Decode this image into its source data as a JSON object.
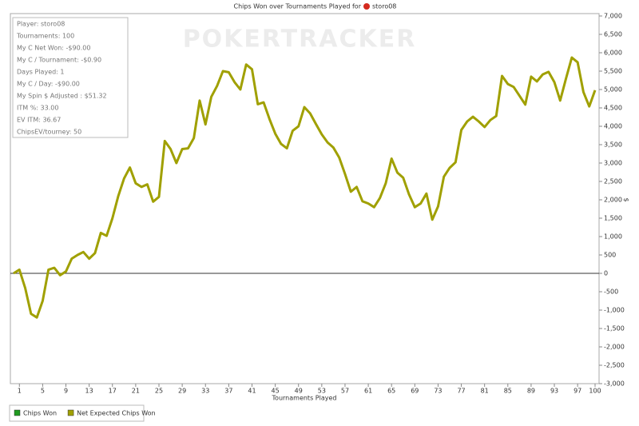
{
  "chart_data": {
    "type": "line",
    "title": "Chips Won over Tournaments Played for",
    "player": "storo08",
    "watermark": "POKERTRACKER",
    "x_label": "Tournaments Played",
    "y_label": "$",
    "info_box": {
      "lines": [
        "Player: storo08",
        "Tournaments: 100",
        "My C Net Won: -$90.00",
        "My C / Tournament: -$0.90",
        "Days Played: 1",
        "My C / Day: -$90.00",
        "My Spin $ Adjusted : $51.32",
        "ITM %: 33.00",
        "EV ITM: 36.67",
        "ChipsEV/tourney: 50"
      ]
    },
    "x": [
      0,
      1,
      2,
      3,
      4,
      5,
      6,
      7,
      8,
      9,
      10,
      11,
      12,
      13,
      14,
      15,
      16,
      17,
      18,
      19,
      20,
      21,
      22,
      23,
      24,
      25,
      26,
      27,
      28,
      29,
      30,
      31,
      32,
      33,
      34,
      35,
      36,
      37,
      38,
      39,
      40,
      41,
      42,
      43,
      44,
      45,
      46,
      47,
      48,
      49,
      50,
      51,
      52,
      53,
      54,
      55,
      56,
      57,
      58,
      59,
      60,
      61,
      62,
      63,
      64,
      65,
      66,
      67,
      68,
      69,
      70,
      71,
      72,
      73,
      74,
      75,
      76,
      77,
      78,
      79,
      80,
      81,
      82,
      83,
      84,
      85,
      86,
      87,
      88,
      89,
      90,
      91,
      92,
      93,
      94,
      95,
      96,
      97,
      98,
      99,
      100
    ],
    "legend": [
      {
        "name": "Chips Won",
        "color": "#1f9a1f"
      }
    ],
    "series": [
      {
        "name": "Net Expected Chips Won",
        "color": "#a0a000",
        "values": [
          0,
          100,
          -400,
          -1100,
          -1200,
          -750,
          100,
          150,
          -50,
          50,
          400,
          500,
          580,
          400,
          550,
          1100,
          1020,
          1500,
          2100,
          2580,
          2880,
          2450,
          2350,
          2420,
          1950,
          2080,
          3600,
          3380,
          3000,
          3380,
          3400,
          3680,
          4700,
          4050,
          4800,
          5100,
          5500,
          5470,
          5200,
          5000,
          5680,
          5550,
          4600,
          4650,
          4200,
          3800,
          3520,
          3400,
          3880,
          4000,
          4520,
          4350,
          4060,
          3780,
          3560,
          3420,
          3150,
          2700,
          2220,
          2350,
          1960,
          1900,
          1800,
          2050,
          2450,
          3120,
          2740,
          2600,
          2150,
          1800,
          1900,
          2170,
          1460,
          1820,
          2630,
          2870,
          3020,
          3900,
          4130,
          4260,
          4130,
          3980,
          4170,
          4280,
          5370,
          5150,
          5070,
          4830,
          4590,
          5350,
          5220,
          5410,
          5480,
          5200,
          4700,
          5300,
          5870,
          5740,
          4930,
          4540,
          4980
        ]
      }
    ],
    "xlim": [
      0,
      100
    ],
    "xticks": [
      1,
      5,
      9,
      13,
      17,
      21,
      25,
      29,
      33,
      37,
      41,
      45,
      49,
      53,
      57,
      61,
      65,
      69,
      73,
      77,
      81,
      85,
      89,
      93,
      97,
      100
    ],
    "ylim": [
      -3000,
      7000
    ],
    "yticks": [
      {
        "value": -3000,
        "label": "-3,000"
      },
      {
        "value": -2500,
        "label": "-2,500"
      },
      {
        "value": -2000,
        "label": "-2,000"
      },
      {
        "value": -1500,
        "label": "-1,500"
      },
      {
        "value": -1000,
        "label": "-1,000"
      },
      -500,
      0,
      500,
      {
        "value": 1000,
        "label": "1,000"
      },
      {
        "value": 1500,
        "label": "1,500"
      },
      {
        "value": 2000,
        "label": "2,000"
      },
      {
        "value": 2500,
        "label": "2,500"
      },
      {
        "value": 3000,
        "label": "3,000"
      },
      {
        "value": 3500,
        "label": "3,500"
      },
      {
        "value": 4000,
        "label": "4,000"
      },
      {
        "value": 4500,
        "label": "4,500"
      },
      {
        "value": 5000,
        "label": "5,000"
      },
      {
        "value": 5500,
        "label": "5,500"
      },
      {
        "value": 6000,
        "label": "6,000"
      },
      {
        "value": 6500,
        "label": "6,500"
      },
      {
        "value": 7000,
        "label": "7,000"
      }
    ],
    "grid": false
  }
}
